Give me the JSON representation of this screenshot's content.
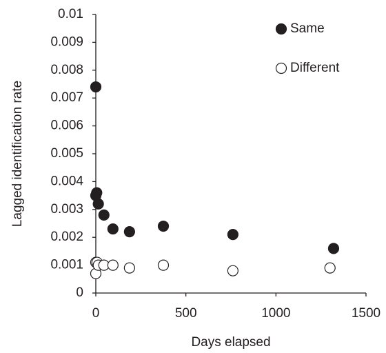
{
  "chart_data": {
    "type": "scatter",
    "x_label": "Days elapsed",
    "y_label": "Lagged identification rate",
    "xlim": [
      0,
      1500
    ],
    "xticks": [
      0,
      500,
      1000,
      1500
    ],
    "ylim": [
      0,
      0.01
    ],
    "yticks": [
      0,
      0.001,
      0.002,
      0.003,
      0.004,
      0.005,
      0.006,
      0.007,
      0.008,
      0.009,
      0.01
    ],
    "legend": "upper right",
    "series": [
      {
        "name": "Same",
        "color": "#231f20",
        "filled": true,
        "x": [
          0,
          0,
          5,
          14,
          45,
          95,
          187,
          375,
          761,
          1320
        ],
        "values": [
          0.0074,
          0.0035,
          0.0036,
          0.0032,
          0.0028,
          0.0023,
          0.0022,
          0.0024,
          0.0021,
          0.0016
        ]
      },
      {
        "name": "Different",
        "color": "#231f20",
        "filled": false,
        "x": [
          0,
          0,
          7,
          14,
          45,
          95,
          187,
          375,
          761,
          1300
        ],
        "values": [
          0.0011,
          0.0007,
          0.0011,
          0.001,
          0.001,
          0.001,
          0.0009,
          0.001,
          0.0008,
          0.0009
        ]
      }
    ]
  }
}
